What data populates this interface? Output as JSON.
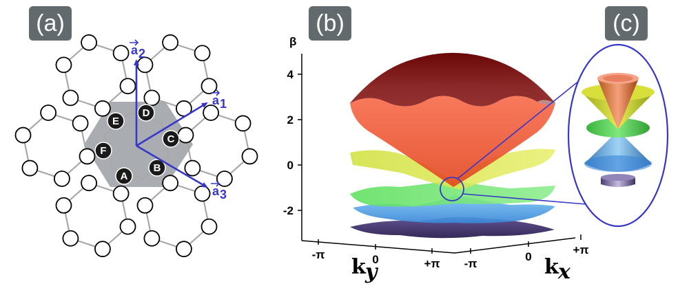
{
  "panels": {
    "a": "(a)",
    "b": "(b)",
    "c": "(c)"
  },
  "lattice": {
    "sites": [
      "A",
      "B",
      "C",
      "D",
      "E",
      "F"
    ],
    "vectors": {
      "a1": {
        "base": "a",
        "sub": "1"
      },
      "a2": {
        "base": "a",
        "sub": "2"
      },
      "a3": {
        "base": "a",
        "sub": "3"
      }
    }
  },
  "chart_data": {
    "type": "surface",
    "ylabel": "β",
    "yticks": [
      4,
      2,
      0,
      -2
    ],
    "ylim": [
      -3,
      5
    ],
    "ky": {
      "label": "k",
      "sub": "y",
      "ticks": [
        "-π",
        "0",
        "+π"
      ]
    },
    "kx": {
      "label": "k",
      "sub": "x",
      "ticks": [
        "-π",
        "0",
        "+π"
      ]
    },
    "bands": [
      {
        "color": "#7a0e0e",
        "range": [
          3.2,
          4.7
        ]
      },
      {
        "color": "#f04a2a",
        "range": [
          -0.8,
          2.9
        ]
      },
      {
        "color": "#d8e23a",
        "range": [
          -0.5,
          0.5
        ]
      },
      {
        "color": "#5ee05e",
        "range": [
          -1.6,
          -0.8
        ]
      },
      {
        "color": "#4aa6e8",
        "range": [
          -2.0,
          -1.0
        ]
      },
      {
        "color": "#3a2a6a",
        "range": [
          -2.6,
          -2.2
        ]
      }
    ]
  }
}
